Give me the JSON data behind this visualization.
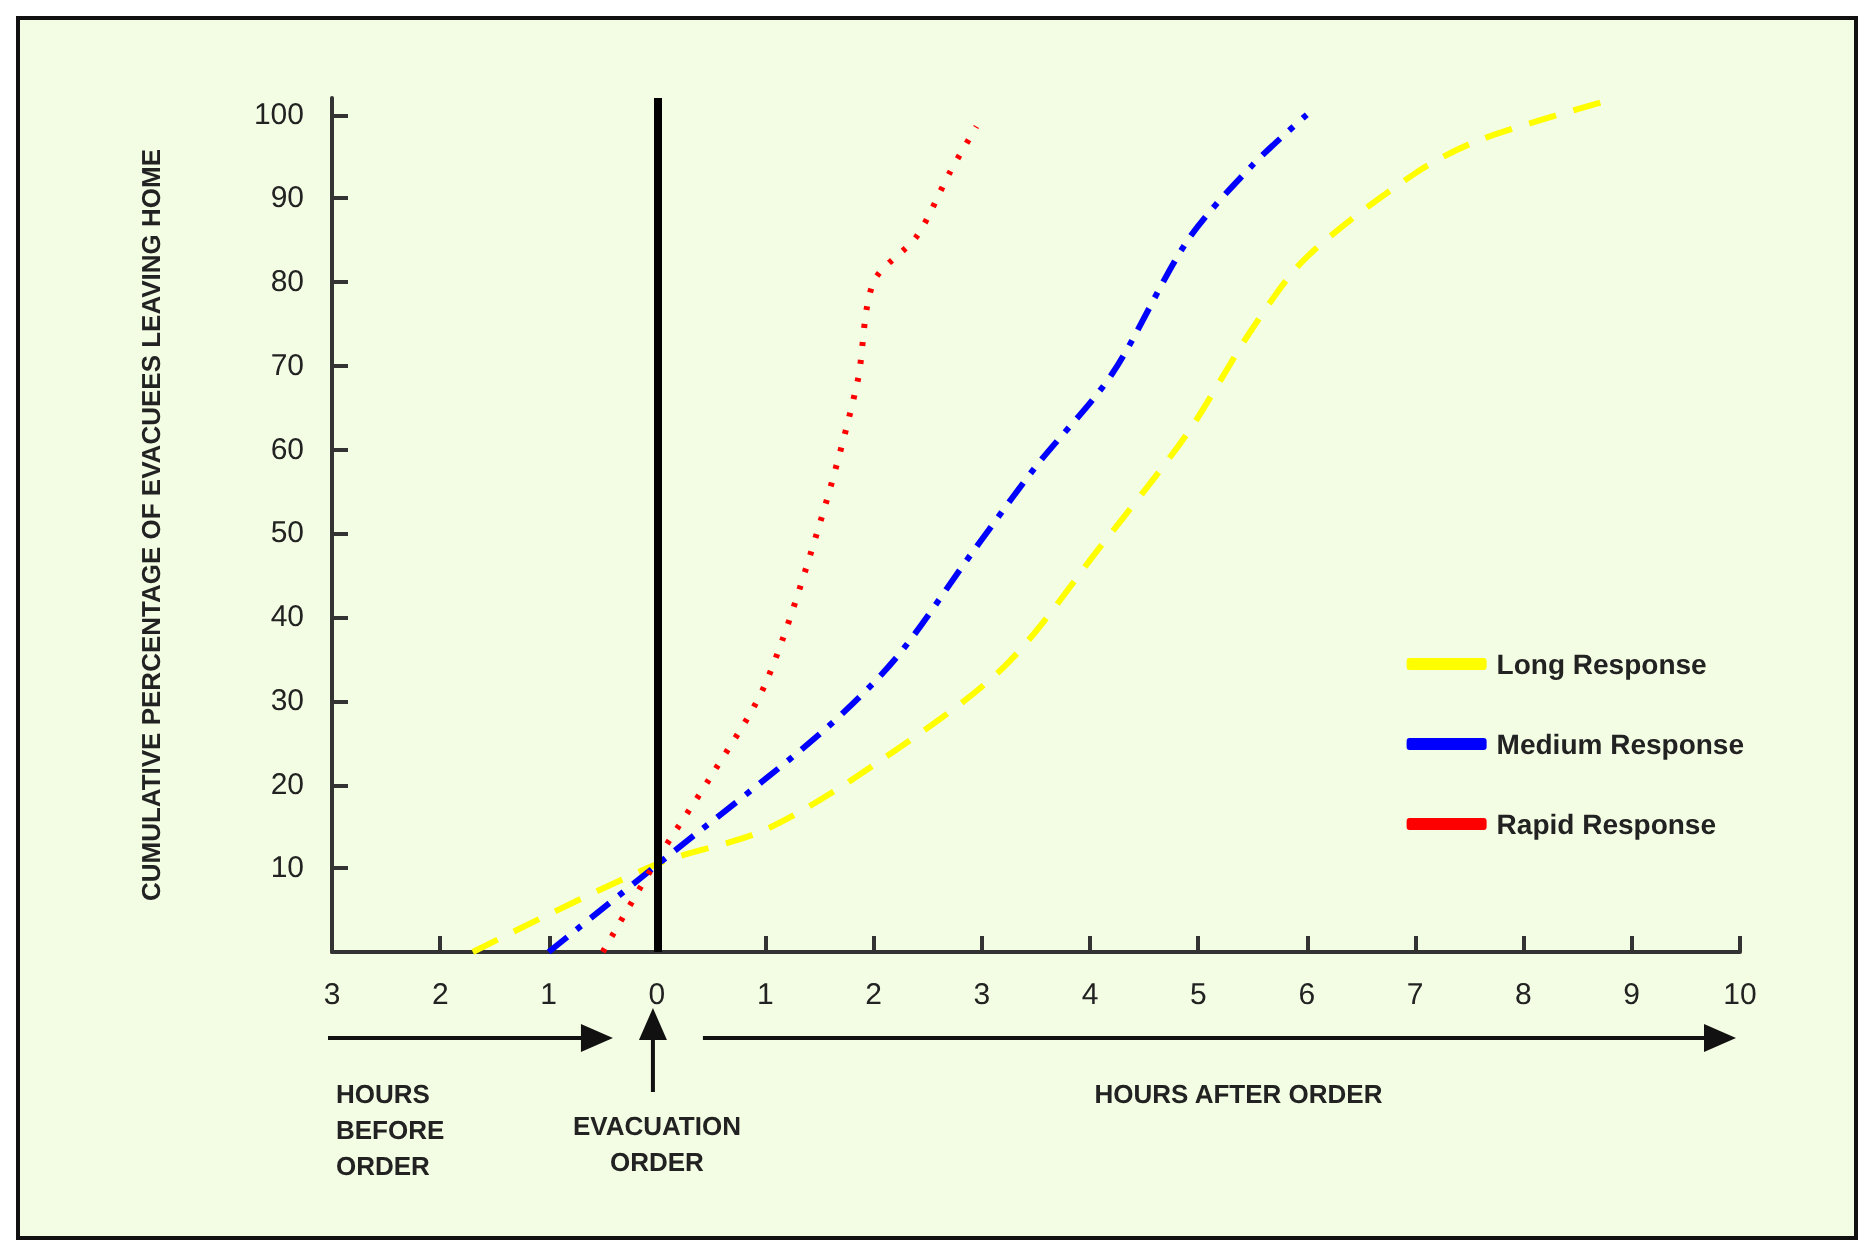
{
  "chart_data": {
    "type": "line",
    "ylabel": "CUMULATIVE PERCENTAGE OF EVACUEES LEAVING HOME",
    "xlim": [
      -3,
      10
    ],
    "xticks": [
      {
        "value": -3,
        "label": "3"
      },
      {
        "value": -2,
        "label": "2"
      },
      {
        "value": -1,
        "label": "1"
      },
      0,
      1,
      2,
      3,
      4,
      5,
      6,
      7,
      8,
      9,
      10
    ],
    "ylim": [
      0,
      102
    ],
    "yticks": [
      10,
      20,
      30,
      40,
      50,
      60,
      70,
      80,
      90,
      100
    ],
    "grid": false,
    "legend": "right",
    "marker": "none",
    "series": [
      {
        "name": "Long Response",
        "color": "#ffff00",
        "line_style": "dashed",
        "x": [
          -1.7,
          0,
          1,
          2,
          3.2,
          4.1,
          4.9,
          5.5,
          6,
          7,
          7.6,
          8.75
        ],
        "values": [
          0,
          10.5,
          14.6,
          22.3,
          34,
          48.5,
          62,
          74.5,
          83,
          93,
          97,
          101.6
        ]
      },
      {
        "name": "Medium Response",
        "color": "#0000ff",
        "line_style": "dashdot",
        "x": [
          -1,
          0,
          1.5,
          2.2,
          2.9,
          3.5,
          4.2,
          4.9,
          5.5,
          6
        ],
        "values": [
          0,
          10.4,
          26,
          35,
          47.5,
          58,
          69,
          85,
          94,
          100
        ]
      },
      {
        "name": "Rapid Response",
        "color": "#ff0000",
        "line_style": "dotted",
        "x": [
          -0.5,
          0,
          0.5,
          1,
          1.5,
          1.85,
          2,
          2.4,
          2.7,
          2.95
        ],
        "values": [
          0,
          11,
          21,
          32,
          51,
          68,
          80,
          85.5,
          93,
          98.6
        ]
      }
    ],
    "ref_lines": [
      {
        "axis": "x",
        "value": 0,
        "color": "#000000"
      }
    ],
    "annotations": [
      "HOURS BEFORE ORDER",
      "EVACUATION ORDER",
      "HOURS AFTER ORDER"
    ]
  }
}
